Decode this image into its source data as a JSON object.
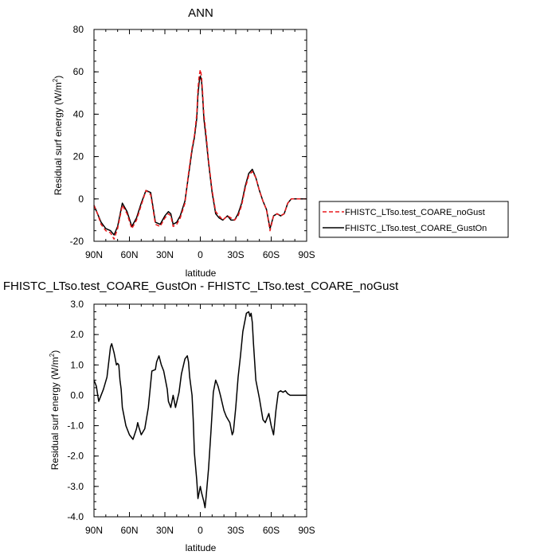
{
  "chart_data": [
    {
      "type": "line",
      "title": "ANN",
      "xlabel": "latitude",
      "ylabel_main": "Residual surf energy (W/m",
      "ylabel_sup": "2",
      "ylabel_tail": ")",
      "xlim": [
        90,
        -90
      ],
      "ylim": [
        -20,
        80
      ],
      "xticks": [
        90,
        60,
        30,
        0,
        -30,
        -60,
        -90
      ],
      "xtick_labels": [
        "90N",
        "60N",
        "30N",
        "0",
        "30S",
        "60S",
        "90S"
      ],
      "yticks": [
        -20,
        0,
        20,
        40,
        60,
        80
      ],
      "ytick_labels": [
        "-20",
        "0",
        "20",
        "40",
        "60",
        "80"
      ],
      "legend": "outside-right",
      "series": [
        {
          "name": "FHISTC_LTso.test_COARE_noGust",
          "color": "#e8191c",
          "dash": "dashed",
          "x": [
            90,
            87,
            84,
            80,
            76,
            73,
            70,
            66,
            62,
            58,
            54,
            50,
            46,
            42,
            38,
            34,
            30,
            27,
            25,
            23,
            20,
            17,
            13,
            10,
            7,
            5,
            3,
            2,
            1,
            0,
            -1,
            -2,
            -3,
            -5,
            -7,
            -10,
            -13,
            -16,
            -19,
            -21,
            -23,
            -26,
            -29,
            -32,
            -35,
            -38,
            -41,
            -44,
            -47,
            -50,
            -53,
            -56,
            -59,
            -62,
            -65,
            -68,
            -71,
            -74,
            -77,
            -80,
            -84,
            -87,
            -90
          ],
          "y": [
            -3,
            -7,
            -12,
            -15,
            -16,
            -19,
            -14,
            -3,
            -7,
            -14,
            -10,
            -3,
            4,
            2,
            -12,
            -13,
            -9,
            -7,
            -8,
            -13,
            -12,
            -9,
            -2,
            12,
            24,
            30,
            40,
            52,
            58,
            61,
            58,
            50,
            40,
            30,
            18,
            4,
            -6,
            -8,
            -10,
            -9,
            -8,
            -9,
            -10,
            -8,
            -3,
            5,
            11,
            13,
            10,
            4,
            -1,
            -5,
            -15,
            -8,
            -7,
            -8,
            -7,
            -2,
            0,
            0,
            0,
            0,
            0
          ]
        },
        {
          "name": "FHISTC_LTso.test_COARE_GustOn",
          "color": "#000000",
          "dash": "solid",
          "x": [
            90,
            87,
            84,
            80,
            76,
            73,
            70,
            66,
            62,
            58,
            54,
            50,
            46,
            42,
            38,
            34,
            30,
            27,
            25,
            23,
            20,
            17,
            13,
            10,
            7,
            5,
            3,
            2,
            1,
            0,
            -1,
            -2,
            -3,
            -5,
            -7,
            -10,
            -13,
            -16,
            -19,
            -21,
            -23,
            -26,
            -29,
            -32,
            -35,
            -38,
            -41,
            -44,
            -47,
            -50,
            -53,
            -56,
            -59,
            -62,
            -65,
            -68,
            -71,
            -74,
            -77,
            -80,
            -84,
            -87,
            -90
          ],
          "y": [
            -3,
            -7,
            -11,
            -14,
            -15,
            -17,
            -13,
            -2,
            -6,
            -13,
            -9,
            -2,
            4,
            3,
            -11,
            -12,
            -8,
            -6,
            -7,
            -12,
            -11,
            -8,
            -1,
            11,
            23,
            29,
            38,
            49,
            55,
            58,
            56,
            48,
            38,
            28,
            17,
            3,
            -7,
            -9,
            -10,
            -9,
            -8,
            -10,
            -10,
            -7,
            -2,
            6,
            12,
            14,
            10,
            4,
            -1,
            -5,
            -14,
            -8,
            -7,
            -8,
            -7,
            -2,
            0,
            0,
            0,
            0,
            0
          ]
        }
      ]
    },
    {
      "type": "line",
      "title": "FHISTC_LTso.test_COARE_GustOn - FHISTC_LTso.test_COARE_noGust",
      "xlabel": "latitude",
      "ylabel_main": "Residual surf energy (W/m",
      "ylabel_sup": "2",
      "ylabel_tail": ")",
      "xlim": [
        90,
        -90
      ],
      "ylim": [
        -4.0,
        3.0
      ],
      "xticks": [
        90,
        60,
        30,
        0,
        -30,
        -60,
        -90
      ],
      "xtick_labels": [
        "90N",
        "60N",
        "30N",
        "0",
        "30S",
        "60S",
        "90S"
      ],
      "yticks": [
        -4,
        -3,
        -2,
        -1,
        0,
        1,
        2,
        3
      ],
      "ytick_labels": [
        "-4.0",
        "-3.0",
        "-2.0",
        "-1.0",
        "0.0",
        "1.0",
        "2.0",
        "3.0"
      ],
      "series": [
        {
          "name": "",
          "color": "#000000",
          "dash": "solid",
          "x": [
            90,
            88,
            86,
            84,
            82,
            79,
            76,
            75,
            73,
            72,
            71,
            70,
            69,
            68,
            67,
            66,
            65,
            63,
            60,
            57,
            54,
            53,
            52,
            50,
            47,
            44,
            41,
            38,
            37,
            35,
            33,
            31,
            28,
            27,
            25,
            24,
            23,
            21,
            18,
            16,
            13,
            11,
            10,
            9,
            7,
            6,
            5,
            3,
            2,
            0,
            -1,
            -3,
            -4,
            -5,
            -7,
            -9,
            -11,
            -13,
            -15,
            -17,
            -20,
            -22,
            -25,
            -27,
            -28,
            -30,
            -32,
            -34,
            -36,
            -39,
            -41,
            -42,
            -43,
            -44,
            -45,
            -47,
            -50,
            -53,
            -55,
            -58,
            -60,
            -62,
            -63,
            -64,
            -66,
            -68,
            -70,
            -72,
            -74,
            -76,
            -78,
            -80,
            -82,
            -84,
            -86,
            -90
          ],
          "y": [
            0.5,
            0.3,
            -0.2,
            0.0,
            0.2,
            0.6,
            1.6,
            1.7,
            1.4,
            1.2,
            1.0,
            1.05,
            1.0,
            0.5,
            0.2,
            -0.4,
            -0.6,
            -1.0,
            -1.3,
            -1.45,
            -1.1,
            -0.9,
            -1.05,
            -1.3,
            -1.1,
            -0.4,
            0.8,
            0.85,
            1.1,
            1.3,
            1.0,
            0.8,
            0.2,
            -0.2,
            -0.4,
            -0.2,
            0.0,
            -0.4,
            0.1,
            0.7,
            1.2,
            1.3,
            1.1,
            0.6,
            0.0,
            -0.8,
            -1.9,
            -2.8,
            -3.4,
            -3.0,
            -3.2,
            -3.5,
            -3.7,
            -3.3,
            -2.4,
            -1.2,
            0.1,
            0.5,
            0.3,
            0.0,
            -0.5,
            -0.7,
            -0.9,
            -1.3,
            -1.2,
            -0.4,
            0.6,
            1.3,
            2.1,
            2.7,
            2.75,
            2.6,
            2.7,
            2.4,
            1.7,
            0.5,
            -0.1,
            -0.8,
            -0.9,
            -0.6,
            -1.0,
            -1.3,
            -0.9,
            -0.5,
            0.1,
            0.15,
            0.1,
            0.15,
            0.05,
            0.0,
            0.0,
            0.0,
            0.0,
            0.0,
            0.0,
            0.0
          ]
        }
      ]
    }
  ]
}
